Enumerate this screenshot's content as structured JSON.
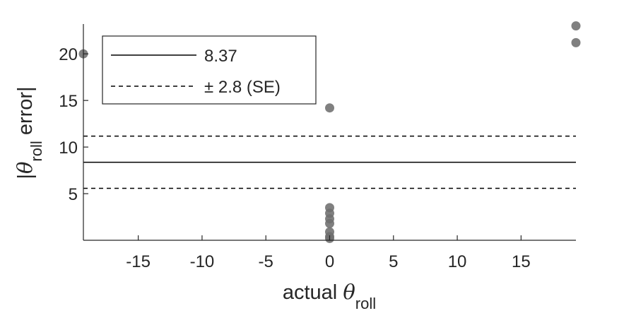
{
  "chart_data": {
    "type": "scatter",
    "title": "",
    "xlabel": {
      "prefix": "actual ",
      "symbol": "θ",
      "subscript": "roll"
    },
    "ylabel": {
      "prefix": "|",
      "symbol": "θ",
      "subscript": "roll",
      "suffix": " error|"
    },
    "xlim": [
      -19.3,
      19.3
    ],
    "ylim": [
      0,
      23.2
    ],
    "xticks": [
      -15,
      -10,
      -5,
      0,
      5,
      10,
      15
    ],
    "yticks": [
      5,
      10,
      15,
      20
    ],
    "grid": false,
    "legend_position": "top-left",
    "series": [
      {
        "kind": "points",
        "color": "#6e6e6e",
        "points": [
          {
            "x": -19.3,
            "y": 20.0
          },
          {
            "x": 0,
            "y": 14.2
          },
          {
            "x": 0,
            "y": 3.5
          },
          {
            "x": 0,
            "y": 2.9
          },
          {
            "x": 0,
            "y": 2.3
          },
          {
            "x": 0,
            "y": 1.8
          },
          {
            "x": 0,
            "y": 0.9
          },
          {
            "x": 0,
            "y": 0.4
          },
          {
            "x": 0,
            "y": 0.2
          },
          {
            "x": 19.3,
            "y": 23.0
          },
          {
            "x": 19.3,
            "y": 21.2
          }
        ]
      },
      {
        "kind": "hline",
        "name": "8.37",
        "value": 8.37,
        "style": "solid",
        "color": "#000000"
      },
      {
        "kind": "hline",
        "name": "± 2.8 (SE)",
        "value": 11.17,
        "style": "dashed",
        "color": "#000000"
      },
      {
        "kind": "hline",
        "name": "",
        "value": 5.57,
        "style": "dashed",
        "color": "#000000"
      }
    ]
  }
}
